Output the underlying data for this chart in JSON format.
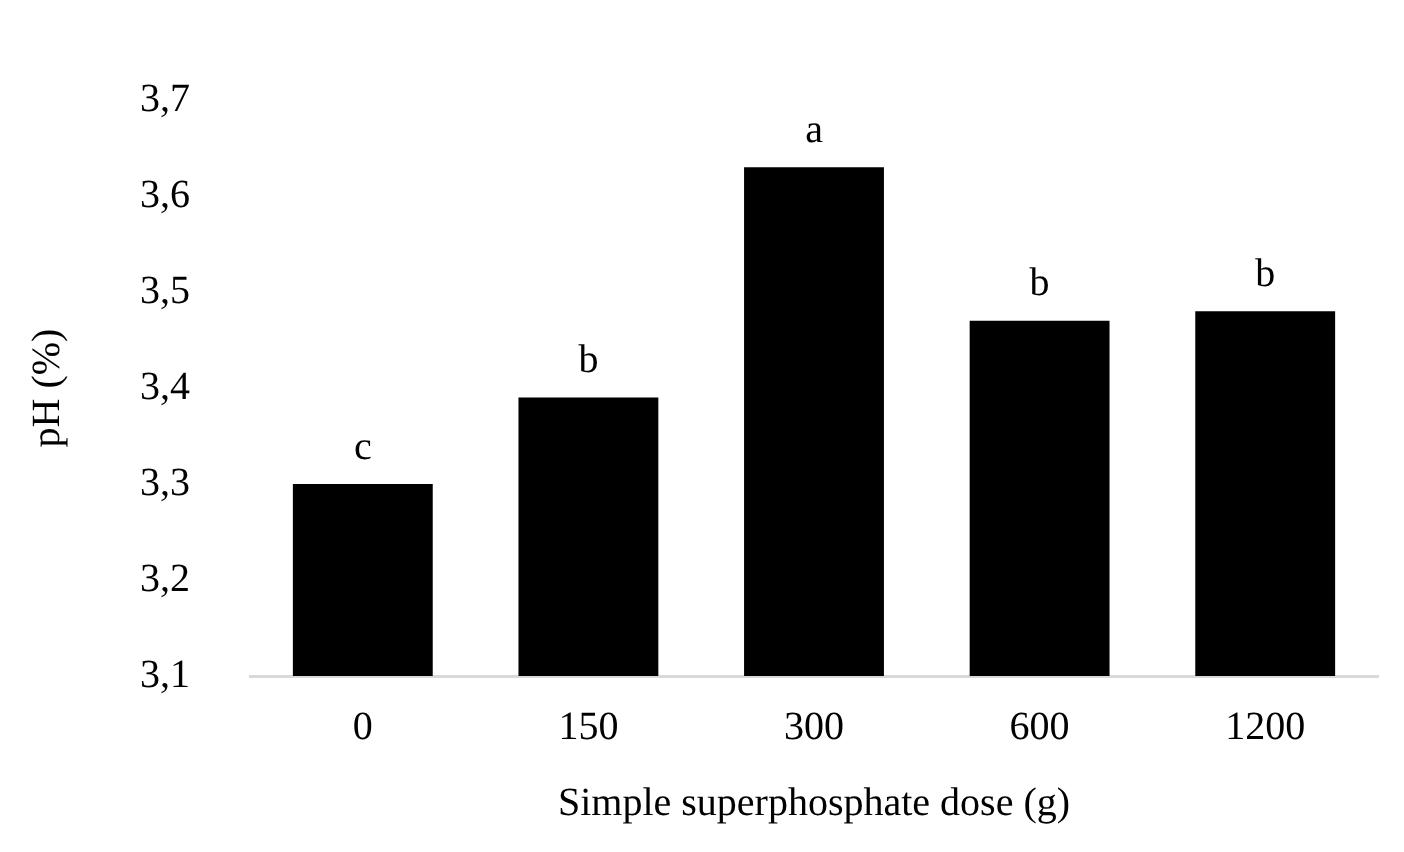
{
  "chart_data": {
    "type": "bar",
    "xlabel": "Simple superphosphate dose (g)",
    "ylabel": "pH (%)",
    "categories": [
      "0",
      "150",
      "300",
      "600",
      "1200"
    ],
    "values": [
      3.3,
      3.39,
      3.63,
      3.47,
      3.48
    ],
    "color": "#000000",
    "ylim": [
      3.1,
      3.7
    ],
    "yticks": [
      {
        "value": 3.1,
        "label": "3,1"
      },
      {
        "value": 3.2,
        "label": "3,2"
      },
      {
        "value": 3.3,
        "label": "3,3"
      },
      {
        "value": 3.4,
        "label": "3,4"
      },
      {
        "value": 3.5,
        "label": "3,5"
      },
      {
        "value": 3.6,
        "label": "3,6"
      },
      {
        "value": 3.7,
        "label": "3,7"
      }
    ],
    "annotations": [
      {
        "text": "c",
        "x": "0",
        "y": 3.3
      },
      {
        "text": "b",
        "x": "150",
        "y": 3.39
      },
      {
        "text": "a",
        "x": "300",
        "y": 3.63
      },
      {
        "text": "b",
        "x": "600",
        "y": 3.47
      },
      {
        "text": "b",
        "x": "1200",
        "y": 3.48
      }
    ],
    "grid": false,
    "legend": false
  }
}
